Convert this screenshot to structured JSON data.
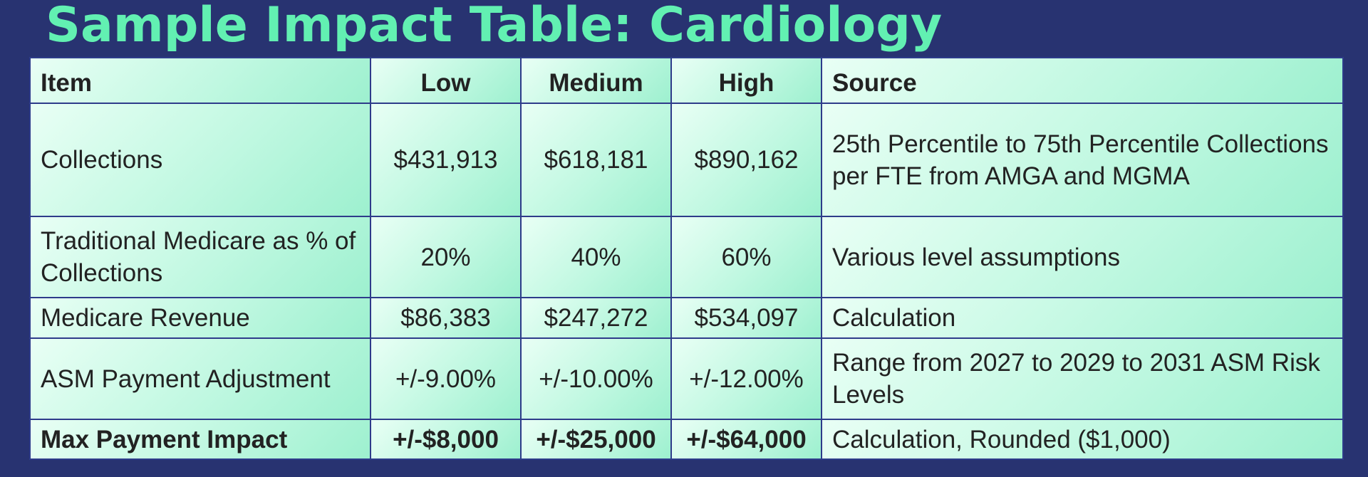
{
  "title": "Sample Impact Table: Cardiology",
  "table": {
    "headers": {
      "item": "Item",
      "low": "Low",
      "medium": "Medium",
      "high": "High",
      "source": "Source"
    },
    "rows": [
      {
        "item": "Collections",
        "low": "$431,913",
        "medium": "$618,181",
        "high": "$890,162",
        "source": "25th Percentile to 75th Percentile Collections per FTE from AMGA and MGMA"
      },
      {
        "item": "Traditional Medicare as % of Collections",
        "low": "20%",
        "medium": "40%",
        "high": "60%",
        "source": "Various level assumptions"
      },
      {
        "item": "Medicare Revenue",
        "low": "$86,383",
        "medium": "$247,272",
        "high": "$534,097",
        "source": "Calculation"
      },
      {
        "item": "ASM Payment Adjustment",
        "low": "+/-9.00%",
        "medium": "+/-10.00%",
        "high": "+/-12.00%",
        "source": "Range from 2027 to 2029 to 2031 ASM Risk Levels"
      },
      {
        "item": "Max Payment Impact",
        "low": "+/-$8,000",
        "medium": "+/-$25,000",
        "high": "+/-$64,000",
        "source": "Calculation, Rounded ($1,000)"
      }
    ]
  },
  "colors": {
    "background": "#283371",
    "title": "#62f0b2",
    "cell_light": "#e9fff5",
    "cell_dark": "#9df0cf",
    "grid": "#2e3b8a"
  }
}
